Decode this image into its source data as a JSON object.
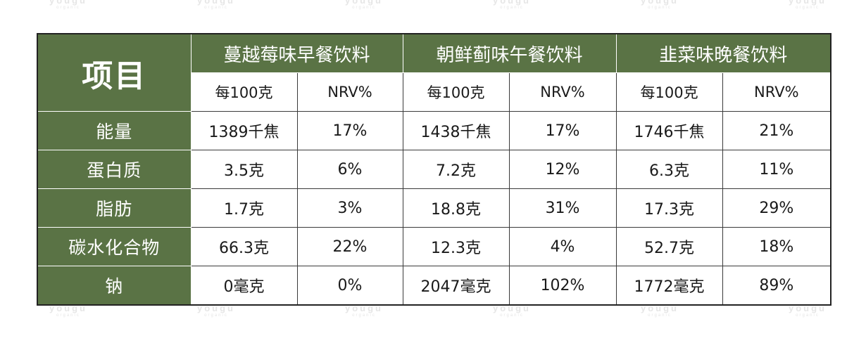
{
  "watermark": {
    "text": "yougu",
    "subtext": "organic"
  },
  "table": {
    "corner_label": "项目",
    "drinks": [
      {
        "name": "蔓越莓味早餐饮料"
      },
      {
        "name": "朝鲜蓟味午餐饮料"
      },
      {
        "name": "韭菜味晚餐饮料"
      }
    ],
    "sub_headers": [
      "每100克",
      "NRV%",
      "每100克",
      "NRV%",
      "每100克",
      "NRV%"
    ],
    "rows": [
      {
        "label": "能量",
        "cells": [
          "1389千焦",
          "17%",
          "1438千焦",
          "17%",
          "1746千焦",
          "21%"
        ]
      },
      {
        "label": "蛋白质",
        "cells": [
          "3.5克",
          "6%",
          "7.2克",
          "12%",
          "6.3克",
          "11%"
        ]
      },
      {
        "label": "脂肪",
        "cells": [
          "1.7克",
          "3%",
          "18.8克",
          "31%",
          "17.3克",
          "29%"
        ]
      },
      {
        "label": "碳水化合物",
        "cells": [
          "66.3克",
          "22%",
          "12.3克",
          "4%",
          "52.7克",
          "18%"
        ]
      },
      {
        "label": "钠",
        "cells": [
          "0毫克",
          "0%",
          "2047毫克",
          "102%",
          "1772毫克",
          "89%"
        ]
      }
    ]
  },
  "colors": {
    "header_green": "#5a7345",
    "header_text": "#ffffff",
    "body_text": "#1a1a1a",
    "border": "#3a3a3a"
  }
}
